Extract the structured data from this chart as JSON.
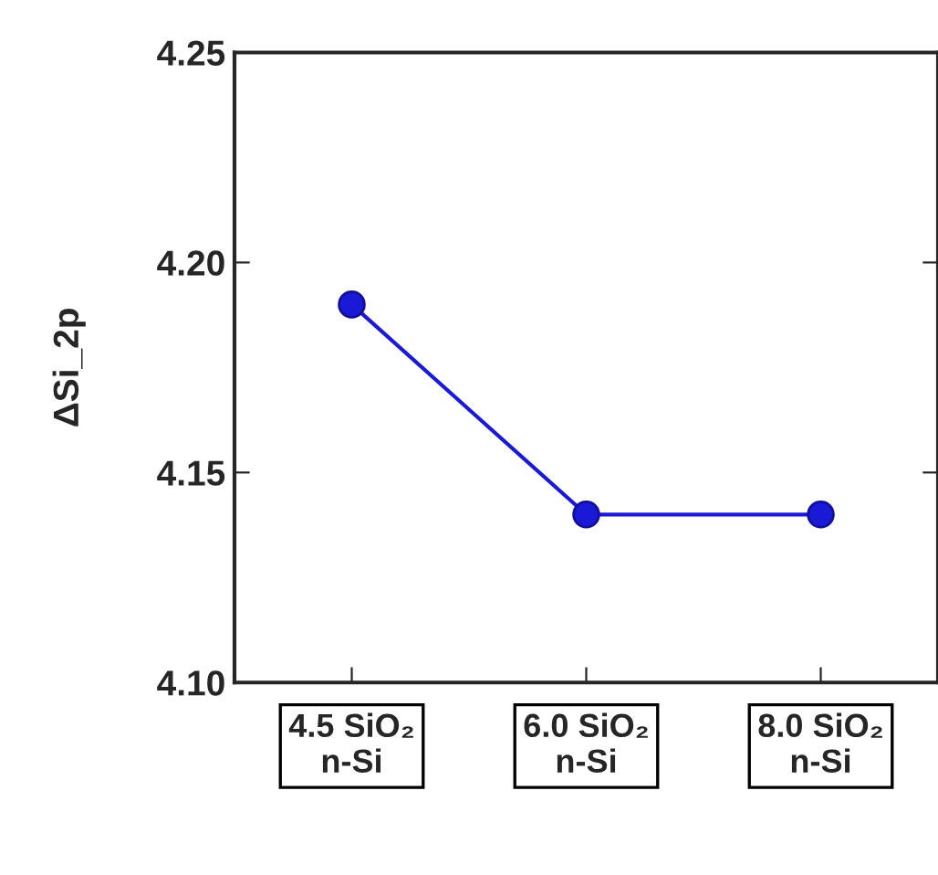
{
  "chart_data": {
    "type": "line",
    "ylabel": "ΔSi_2p",
    "categories": [
      "4.5 SiO₂\nn-Si",
      "6.0 SiO₂\nn-Si",
      "8.0 SiO₂\nn-Si"
    ],
    "series": [
      {
        "color": "#1a1ad6",
        "values": [
          4.19,
          4.14,
          4.14
        ]
      }
    ],
    "ylim": [
      4.1,
      4.25
    ],
    "yticks": [
      {
        "value": 4.1,
        "label": "4.10"
      },
      4.15,
      {
        "value": 4.2,
        "label": "4.20"
      },
      4.25
    ],
    "marker": "circle",
    "line_style": "solid",
    "grid": false,
    "legend": false
  }
}
